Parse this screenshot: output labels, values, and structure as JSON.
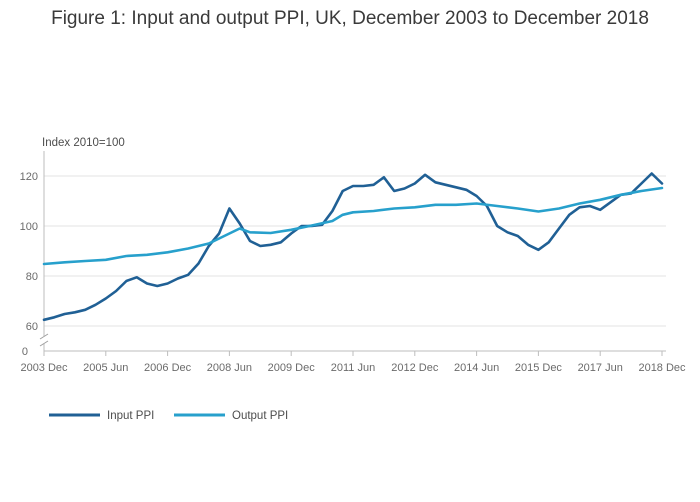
{
  "page_title": "Figure 1: Input and output PPI, UK, December 2003 to December 2018",
  "chart_data": {
    "type": "line",
    "title": "Figure 1: Input and output PPI, UK, December 2003 to December 2018",
    "ylabel": "Index 2010=100",
    "xlabel": "",
    "x_start": "2003 Dec",
    "x_end": "2018 Dec",
    "ylim": [
      60,
      130
    ],
    "y_ticks": [
      60,
      80,
      100,
      120
    ],
    "y_axis_break_label": "0",
    "x_ticks": [
      "2003 Dec",
      "2005 Jun",
      "2006 Dec",
      "2008 Jun",
      "2009 Dec",
      "2011 Jun",
      "2012 Dec",
      "2014 Jun",
      "2015 Dec",
      "2017 Jun",
      "2018 Dec"
    ],
    "grid": true,
    "legend_position": "bottom-left",
    "series": [
      {
        "name": "Input PPI",
        "color": "#206095",
        "points": [
          [
            "2003 Dec",
            62.5
          ],
          [
            "2004 Mar",
            63.5
          ],
          [
            "2004 Jun",
            64.8
          ],
          [
            "2004 Sep",
            65.5
          ],
          [
            "2004 Dec",
            66.5
          ],
          [
            "2005 Mar",
            68.5
          ],
          [
            "2005 Jun",
            71
          ],
          [
            "2005 Sep",
            74
          ],
          [
            "2005 Dec",
            78
          ],
          [
            "2006 Mar",
            79.5
          ],
          [
            "2006 Jun",
            77
          ],
          [
            "2006 Sep",
            76
          ],
          [
            "2006 Dec",
            77
          ],
          [
            "2007 Mar",
            79
          ],
          [
            "2007 Jun",
            80.5
          ],
          [
            "2007 Sep",
            85
          ],
          [
            "2007 Dec",
            92
          ],
          [
            "2008 Mar",
            97
          ],
          [
            "2008 Jun",
            107
          ],
          [
            "2008 Sep",
            101
          ],
          [
            "2008 Dec",
            94
          ],
          [
            "2009 Mar",
            92
          ],
          [
            "2009 Jun",
            92.5
          ],
          [
            "2009 Sep",
            93.5
          ],
          [
            "2009 Dec",
            97
          ],
          [
            "2010 Mar",
            100
          ],
          [
            "2010 Jun",
            100
          ],
          [
            "2010 Sep",
            100.5
          ],
          [
            "2010 Dec",
            106
          ],
          [
            "2011 Mar",
            114
          ],
          [
            "2011 Jun",
            116
          ],
          [
            "2011 Sep",
            116
          ],
          [
            "2011 Dec",
            116.5
          ],
          [
            "2012 Mar",
            119.5
          ],
          [
            "2012 Jun",
            114
          ],
          [
            "2012 Sep",
            115
          ],
          [
            "2012 Dec",
            117
          ],
          [
            "2013 Mar",
            120.5
          ],
          [
            "2013 Jun",
            117.5
          ],
          [
            "2013 Sep",
            116.5
          ],
          [
            "2013 Dec",
            115.5
          ],
          [
            "2014 Mar",
            114.5
          ],
          [
            "2014 Jun",
            112
          ],
          [
            "2014 Sep",
            108
          ],
          [
            "2014 Dec",
            100
          ],
          [
            "2015 Mar",
            97.5
          ],
          [
            "2015 Jun",
            96
          ],
          [
            "2015 Sep",
            92.5
          ],
          [
            "2015 Dec",
            90.5
          ],
          [
            "2016 Mar",
            93.5
          ],
          [
            "2016 Jun",
            99
          ],
          [
            "2016 Sep",
            104.5
          ],
          [
            "2016 Dec",
            107.5
          ],
          [
            "2017 Mar",
            108
          ],
          [
            "2017 Jun",
            106.5
          ],
          [
            "2017 Sep",
            109.5
          ],
          [
            "2017 Dec",
            112.5
          ],
          [
            "2018 Mar",
            113
          ],
          [
            "2018 Jun",
            117
          ],
          [
            "2018 Sep",
            121
          ],
          [
            "2018 Dec",
            117
          ]
        ]
      },
      {
        "name": "Output PPI",
        "color": "#27a0cc",
        "points": [
          [
            "2003 Dec",
            84.8
          ],
          [
            "2004 Jun",
            85.5
          ],
          [
            "2004 Dec",
            86
          ],
          [
            "2005 Jun",
            86.5
          ],
          [
            "2005 Dec",
            88
          ],
          [
            "2006 Jun",
            88.5
          ],
          [
            "2006 Dec",
            89.5
          ],
          [
            "2007 Jun",
            91
          ],
          [
            "2007 Dec",
            93
          ],
          [
            "2008 Jun",
            97
          ],
          [
            "2008 Sep",
            99
          ],
          [
            "2008 Dec",
            97.5
          ],
          [
            "2009 Jun",
            97.2
          ],
          [
            "2009 Dec",
            98.5
          ],
          [
            "2010 Jun",
            100.2
          ],
          [
            "2010 Dec",
            102
          ],
          [
            "2011 Mar",
            104.5
          ],
          [
            "2011 Jun",
            105.5
          ],
          [
            "2011 Dec",
            106
          ],
          [
            "2012 Jun",
            107
          ],
          [
            "2012 Dec",
            107.5
          ],
          [
            "2013 Jun",
            108.5
          ],
          [
            "2013 Dec",
            108.5
          ],
          [
            "2014 Jun",
            109
          ],
          [
            "2014 Dec",
            108
          ],
          [
            "2015 Jun",
            107
          ],
          [
            "2015 Dec",
            105.8
          ],
          [
            "2016 Jun",
            107
          ],
          [
            "2016 Dec",
            109
          ],
          [
            "2017 Jun",
            110.5
          ],
          [
            "2017 Dec",
            112.5
          ],
          [
            "2018 Jun",
            114
          ],
          [
            "2018 Dec",
            115.2
          ]
        ]
      }
    ]
  }
}
